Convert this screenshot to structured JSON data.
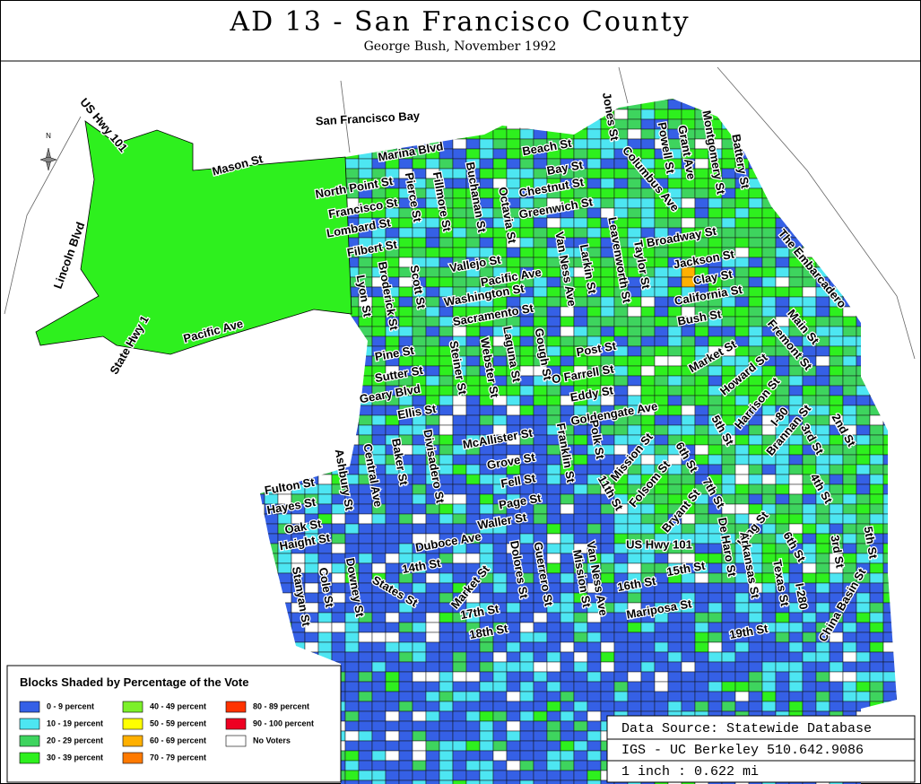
{
  "header": {
    "title": "AD 13 - San Francisco County",
    "subtitle": "George Bush, November 1992"
  },
  "map": {
    "north_label": "N",
    "labels": [
      "US Hwy 101",
      "Lincoln Blvd",
      "Mason St",
      "San Francisco Bay",
      "Marina Blvd",
      "North Point St",
      "Francisco St",
      "Lombard St",
      "Filbert St",
      "Lyon St",
      "Broderick St",
      "Pierce St",
      "Scott St",
      "Fillmore St",
      "Buchanan St",
      "Octavia St",
      "Vallejo St",
      "Pacific Ave",
      "Washington St",
      "Sacramento St",
      "Pine St",
      "Sutter St",
      "Geary Blvd",
      "Ellis St",
      "Steiner St",
      "Webster St",
      "Laguna St",
      "Gough St",
      "Van Ness Ave",
      "Larkin St",
      "Leavenworth St",
      "Taylor St",
      "Jones St",
      "Powell St",
      "Columbus Ave",
      "Grant Ave",
      "Montgomery St",
      "Battery St",
      "Beach St",
      "Bay St",
      "Chestnut St",
      "Greenwich St",
      "Broadway St",
      "Jackson St",
      "Clay St",
      "California St",
      "Bush St",
      "The Embarcadero",
      "Main St",
      "Fremont St",
      "Market St",
      "Howard St",
      "Post St",
      "O Farrell St",
      "Eddy St",
      "Goldengate Ave",
      "McAllister St",
      "Grove St",
      "Fell St",
      "Page St",
      "Waller St",
      "Duboce Ave",
      "Fulton St",
      "Hayes St",
      "Oak St",
      "Haight St",
      "Ashbury St",
      "Central Ave",
      "Baker St",
      "Divisadero St",
      "Franklin St",
      "Polk St",
      "Mission St",
      "11th St",
      "Folsom St",
      "6th St",
      "5th St",
      "Harrison St",
      "I-80",
      "Brannan St",
      "3rd St",
      "2nd St",
      "4th St",
      "King St",
      "Bryant St",
      "7th St",
      "US Hwy 101",
      "Van Ness Ave",
      "Mission St",
      "Guerrero St",
      "Dolores St",
      "Market St",
      "14th St",
      "15th St",
      "16th St",
      "17th St",
      "18th St",
      "Mariposa St",
      "19th St",
      "De Haro St",
      "Arkansas St",
      "Texas St",
      "6th St",
      "I-280",
      "China Basin St",
      "3rd St",
      "Stanyan St",
      "Cole St",
      "Downey St",
      "States St",
      "State Hwy 1",
      "Pacific Ave",
      "5th St"
    ]
  },
  "legend": {
    "title": "Blocks Shaded by Percentage of the Vote",
    "items": [
      {
        "label": "0 - 9 percent",
        "color": "#3560e6"
      },
      {
        "label": "10 - 19 percent",
        "color": "#4de6f2"
      },
      {
        "label": "20 - 29 percent",
        "color": "#3ed45e"
      },
      {
        "label": "30 - 39 percent",
        "color": "#2ef01e"
      },
      {
        "label": "40 - 49 percent",
        "color": "#7cf02a"
      },
      {
        "label": "50 - 59 percent",
        "color": "#ffff00"
      },
      {
        "label": "60 - 69 percent",
        "color": "#ffb000"
      },
      {
        "label": "70 - 79 percent",
        "color": "#ff7a00"
      },
      {
        "label": "80 - 89 percent",
        "color": "#ff3300"
      },
      {
        "label": "90 - 100 percent",
        "color": "#ee0022"
      },
      {
        "label": "No Voters",
        "color": "#ffffff"
      }
    ]
  },
  "source": {
    "lines": [
      "Data Source: Statewide Database",
      "IGS - UC Berkeley 510.642.9086",
      "1 inch : 0.622 mi"
    ]
  }
}
